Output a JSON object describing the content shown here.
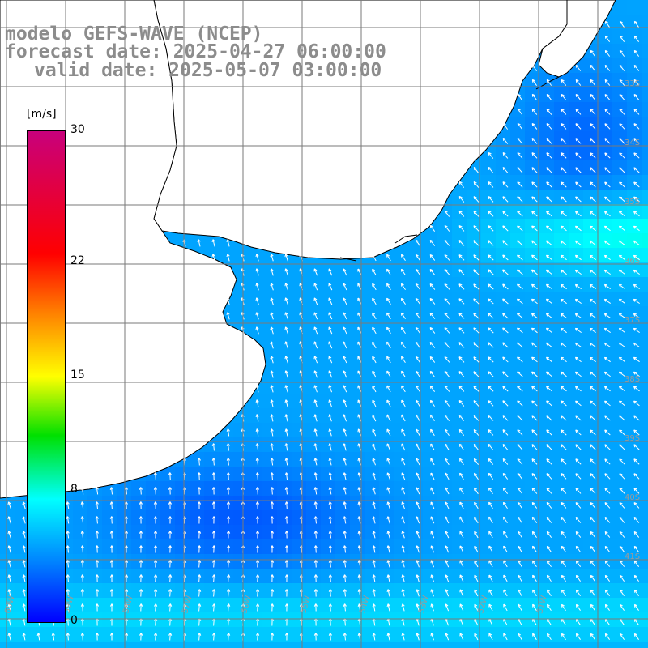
{
  "header": {
    "line1": "modelo GEFS-WAVE (NCEP)",
    "line2": "forecast date: 2025-04-27 06:00:00",
    "line3": "valid date: 2025-05-07 03:00:00"
  },
  "colorbar": {
    "unit": "[m/s]",
    "ticks": [
      {
        "label": "30",
        "value": 30
      },
      {
        "label": "22",
        "value": 22
      },
      {
        "label": "15",
        "value": 15
      },
      {
        "label": "8",
        "value": 8
      },
      {
        "label": "0",
        "value": 0
      }
    ],
    "colors": [
      "#0000ff",
      "#0080ff",
      "#00ffff",
      "#00e000",
      "#ffff00",
      "#ff8000",
      "#ff0000",
      "#c8007c"
    ]
  },
  "chart_data": {
    "type": "heatmap",
    "variable": "wind speed with direction vectors",
    "unit": "[m/s]",
    "range": [
      0,
      30
    ],
    "lat_labels": [
      "33S",
      "34S",
      "35S",
      "36S",
      "37S",
      "38S",
      "39S",
      "40S",
      "41S"
    ],
    "lon_labels": [
      "60W",
      "59W",
      "58W",
      "57W",
      "56W",
      "55W",
      "54W",
      "53W",
      "52W",
      "51W"
    ],
    "dominant_direction": "northwest",
    "approx_speed_range": [
      1,
      10
    ]
  }
}
